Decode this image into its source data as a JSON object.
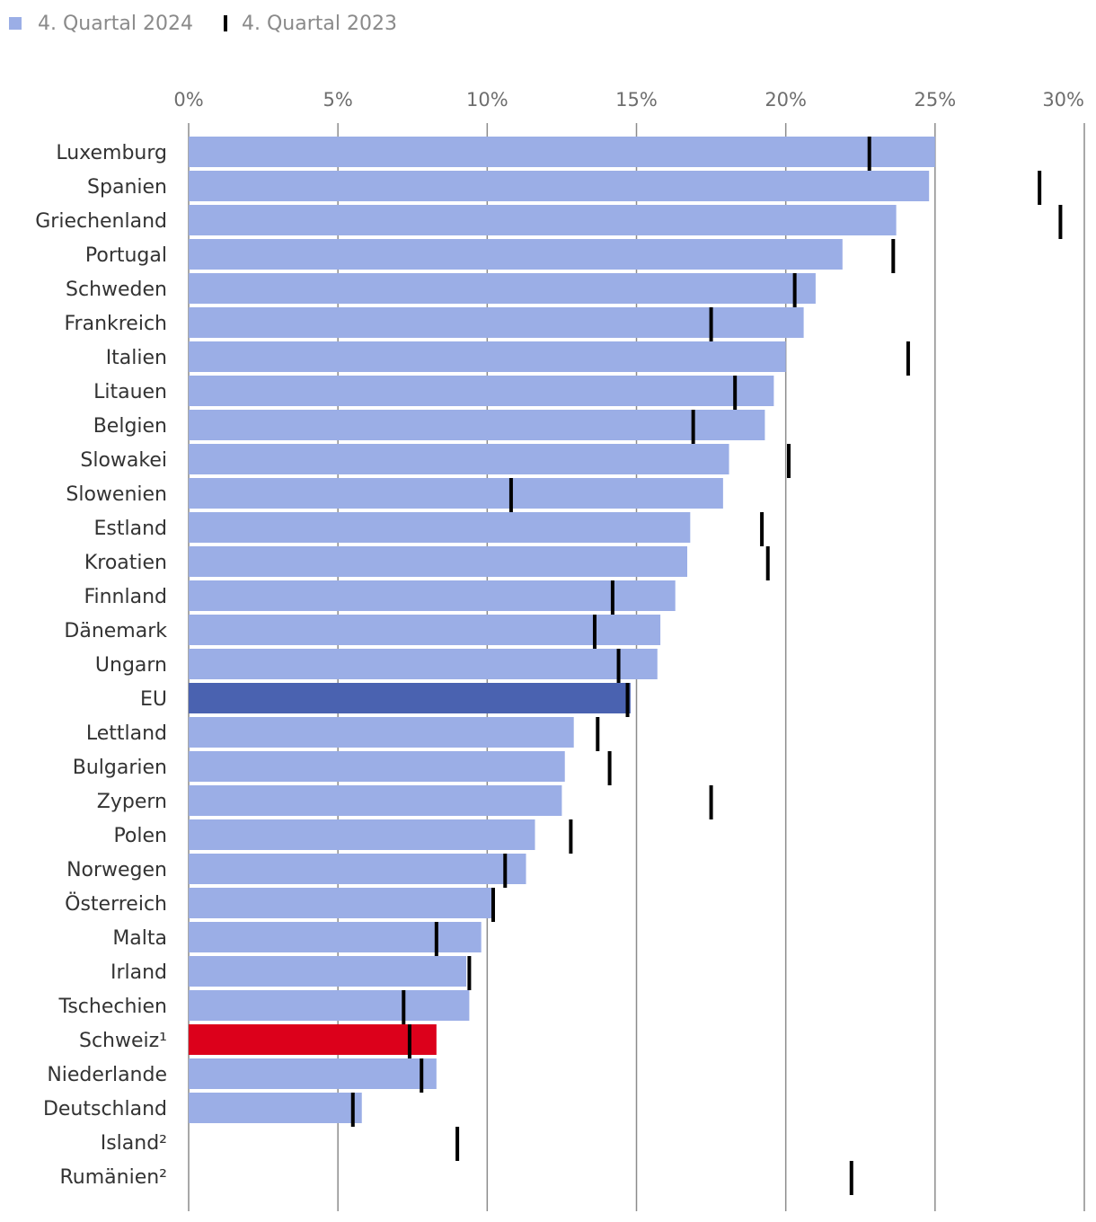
{
  "legend": {
    "current_label": "4. Quartal 2024",
    "previous_label": "4. Quartal 2023",
    "current_color": "#9baee6",
    "previous_color": "#000000"
  },
  "chart_data": {
    "type": "bar",
    "orientation": "horizontal",
    "title": "",
    "xlabel": "",
    "ylabel": "",
    "xlim": [
      0,
      30
    ],
    "xticks": [
      0,
      5,
      10,
      15,
      20,
      25,
      30
    ],
    "xtick_labels": [
      "0%",
      "5%",
      "10%",
      "15%",
      "20%",
      "25%",
      "30%"
    ],
    "gridlines": true,
    "categories": [
      "Luxemburg",
      "Spanien",
      "Griechenland",
      "Portugal",
      "Schweden",
      "Frankreich",
      "Italien",
      "Litauen",
      "Belgien",
      "Slowakei",
      "Slowenien",
      "Estland",
      "Kroatien",
      "Finnland",
      "Dänemark",
      "Ungarn",
      "EU",
      "Lettland",
      "Bulgarien",
      "Zypern",
      "Polen",
      "Norwegen",
      "Österreich",
      "Malta",
      "Irland",
      "Tschechien",
      "Schweiz¹",
      "Niederlande",
      "Deutschland",
      "Island²",
      "Rumänien²"
    ],
    "series": [
      {
        "name": "4. Quartal 2024",
        "style": "bar",
        "values": [
          25.0,
          24.8,
          23.7,
          21.9,
          21.0,
          20.6,
          20.0,
          19.6,
          19.3,
          18.1,
          17.9,
          16.8,
          16.7,
          16.3,
          15.8,
          15.7,
          14.8,
          12.9,
          12.6,
          12.5,
          11.6,
          11.3,
          10.2,
          9.8,
          9.3,
          9.4,
          8.3,
          8.3,
          5.8,
          null,
          null
        ]
      },
      {
        "name": "4. Quartal 2023",
        "style": "marker",
        "values": [
          22.8,
          28.5,
          29.2,
          23.6,
          20.3,
          17.5,
          24.1,
          18.3,
          16.9,
          20.1,
          10.8,
          19.2,
          19.4,
          14.2,
          13.6,
          14.4,
          14.7,
          13.7,
          14.1,
          17.5,
          12.8,
          10.6,
          10.2,
          8.3,
          9.4,
          7.2,
          7.4,
          7.8,
          5.5,
          9.0,
          22.2
        ]
      }
    ],
    "highlights": {
      "EU": "#4a62b0",
      "Schweiz¹": "#dc001b"
    }
  }
}
